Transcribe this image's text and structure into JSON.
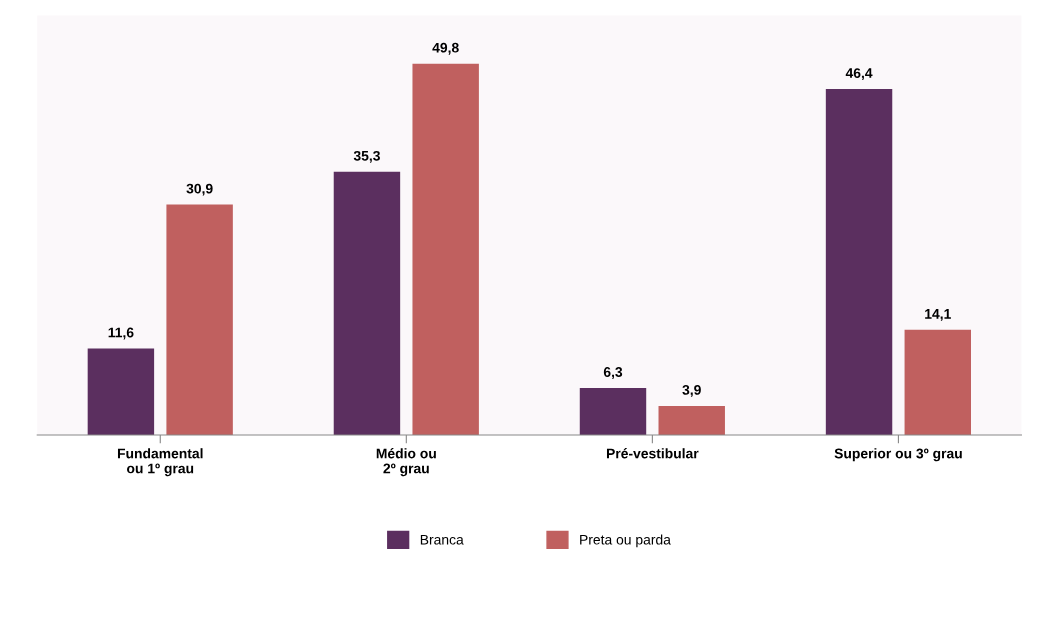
{
  "chart_data": {
    "type": "bar",
    "categories": [
      "Fundamental\nou 1º grau",
      "Médio ou\n2º grau",
      "Pré-vestibular",
      "Superior ou 3º grau"
    ],
    "series": [
      {
        "name": "Branca",
        "color": "#5b2f5f",
        "values": [
          11.6,
          35.3,
          6.3,
          46.4
        ],
        "value_labels": [
          "11,6",
          "35,3",
          "6,3",
          "46,4"
        ]
      },
      {
        "name": "Preta ou parda",
        "color": "#c0605f",
        "values": [
          30.9,
          49.8,
          3.9,
          14.1
        ],
        "value_labels": [
          "30,9",
          "49,8",
          "3,9",
          "14,1"
        ]
      }
    ],
    "legend": "bottom",
    "grid": false
  }
}
